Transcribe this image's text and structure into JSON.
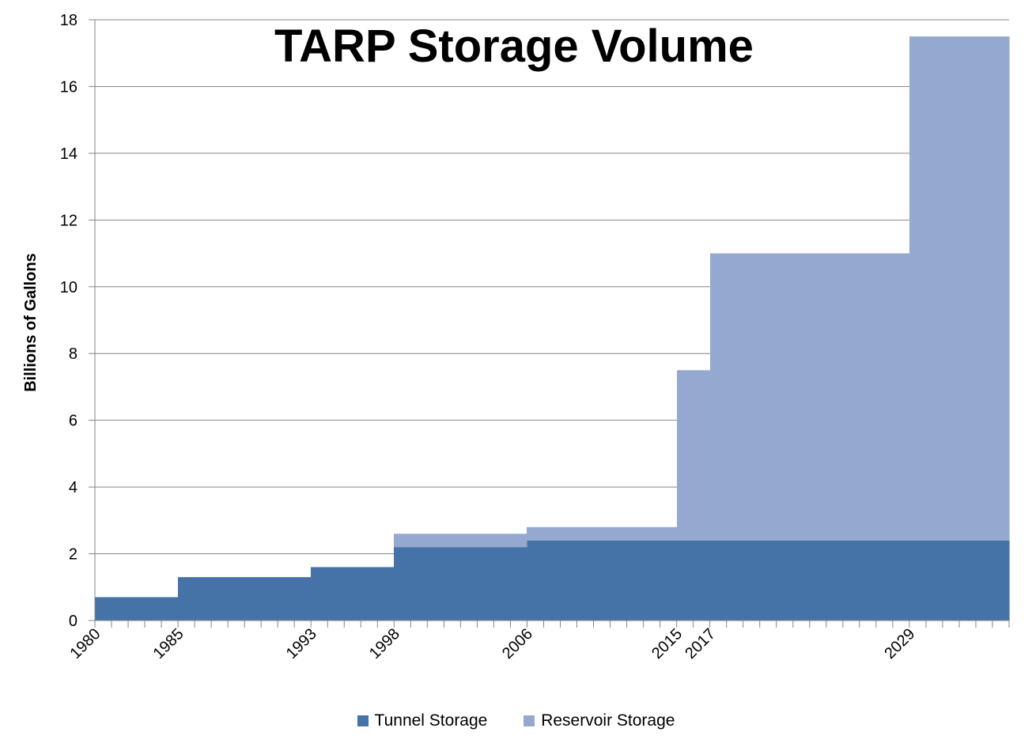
{
  "chart_data": {
    "type": "area",
    "title": "TARP Storage Volume",
    "xlabel": "",
    "ylabel": "Billions of Gallons",
    "x_range": [
      1980,
      2035
    ],
    "ylim": [
      0,
      18
    ],
    "y_ticks": [
      0,
      2,
      4,
      6,
      8,
      10,
      12,
      14,
      16,
      18
    ],
    "x_tick_labels": [
      1980,
      1985,
      1993,
      1998,
      2006,
      2015,
      2017,
      2029
    ],
    "stacked": true,
    "step": true,
    "grid": "horizontal",
    "legend_position": "bottom",
    "series": [
      {
        "name": "Tunnel Storage",
        "color": "#4572A7",
        "steps": [
          {
            "from": 1980,
            "to": 1985,
            "value": 0.7
          },
          {
            "from": 1985,
            "to": 1993,
            "value": 1.3
          },
          {
            "from": 1993,
            "to": 1998,
            "value": 1.6
          },
          {
            "from": 1998,
            "to": 2006,
            "value": 2.2
          },
          {
            "from": 2006,
            "to": 2015,
            "value": 2.4
          },
          {
            "from": 2015,
            "to": 2017,
            "value": 2.4
          },
          {
            "from": 2017,
            "to": 2029,
            "value": 2.4
          },
          {
            "from": 2029,
            "to": 2035,
            "value": 2.4
          }
        ]
      },
      {
        "name": "Reservoir Storage",
        "color": "#95A9D0",
        "steps": [
          {
            "from": 1980,
            "to": 1985,
            "value": 0
          },
          {
            "from": 1985,
            "to": 1993,
            "value": 0
          },
          {
            "from": 1993,
            "to": 1998,
            "value": 0
          },
          {
            "from": 1998,
            "to": 2006,
            "value": 0.4
          },
          {
            "from": 2006,
            "to": 2015,
            "value": 0.4
          },
          {
            "from": 2015,
            "to": 2017,
            "value": 5.1
          },
          {
            "from": 2017,
            "to": 2029,
            "value": 8.6
          },
          {
            "from": 2029,
            "to": 2035,
            "value": 15.1
          }
        ]
      }
    ]
  }
}
